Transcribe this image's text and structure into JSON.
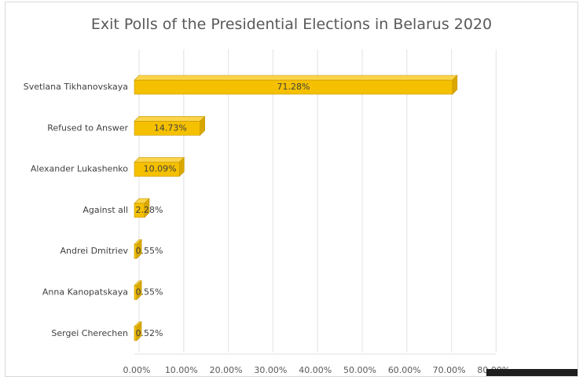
{
  "chart_data": {
    "type": "bar",
    "orientation": "horizontal",
    "title": "Exit Polls of the Presidential Elections in Belarus 2020",
    "categories": [
      "Svetlana Tikhanovskaya",
      "Refused to Answer",
      "Alexander Lukashenko",
      "Against all",
      "Andrei Dmitriev",
      "Anna Kanopatskaya",
      "Sergei Cherechen"
    ],
    "values": [
      71.28,
      14.73,
      10.09,
      2.28,
      0.55,
      0.55,
      0.52
    ],
    "value_labels": [
      "71.28%",
      "14.73%",
      "10.09%",
      "2.28%",
      "0.55%",
      "0.55%",
      "0.52%"
    ],
    "x_ticks": [
      "0.00%",
      "10.00%",
      "20.00%",
      "30.00%",
      "40.00%",
      "50.00%",
      "60.00%",
      "70.00%",
      "80.00%"
    ],
    "xlim": [
      0,
      80
    ],
    "xlabel": "",
    "ylabel": "",
    "grid": true,
    "legend": "none",
    "bar_color": "#f5c000"
  }
}
